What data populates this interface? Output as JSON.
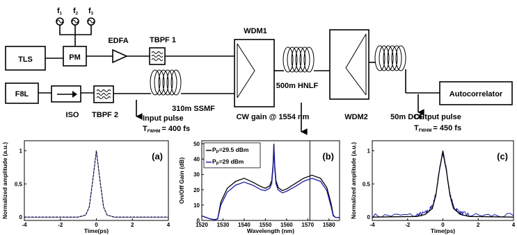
{
  "setup": {
    "freqs": [
      "f",
      "f",
      "f"
    ],
    "freq_subs": [
      "1",
      "2",
      "3"
    ],
    "tls": "TLS",
    "pm": "PM",
    "edfa": "EDFA",
    "tbpf1": "TBPF 1",
    "wdm1": "WDM1",
    "f8l": "F8L",
    "iso": "ISO",
    "tbpf2": "TBPF 2",
    "ssmf": "310m SSMF",
    "hnlf": "500m HNLF",
    "wdm2": "WDM2",
    "dcf": "50m DCF",
    "autocorrelator": "Autocorrelator",
    "input_pulse": "Input pulse",
    "input_fwhm_t": "T",
    "input_fwhm_sub": "FWHM",
    "input_fwhm_val": "= 400 fs",
    "cw_gain": "CW gain @ 1554 nm",
    "output_pulse": "Output pulse",
    "output_fwhm_t": "T",
    "output_fwhm_sub": "FWHM",
    "output_fwhm_val": "= 450 fs"
  },
  "chart_data": [
    {
      "type": "line",
      "panel_label": "(a)",
      "xlabel": "Time(ps)",
      "ylabel": "Normalized amplitude (a.u.)",
      "xlim": [
        -4,
        4
      ],
      "ylim": [
        -0.05,
        1.15
      ],
      "xticks": [
        "-4",
        "-2",
        "0",
        "2",
        "4"
      ],
      "yticks": [
        "0",
        "0.5",
        "1"
      ],
      "series": [
        {
          "color": "#1a1aa6",
          "style": "dashed",
          "x": [
            -4,
            -1,
            -0.6,
            -0.4,
            -0.2,
            0,
            0.2,
            0.4,
            0.6,
            1,
            4
          ],
          "y": [
            0,
            0,
            0.03,
            0.15,
            0.55,
            1.0,
            0.55,
            0.15,
            0.03,
            0,
            0
          ]
        }
      ],
      "color_line": "#1a1aa6"
    },
    {
      "type": "line",
      "panel_label": "(b)",
      "xlabel": "Wavelength (nm)",
      "ylabel": "On/Off Gain (dB)",
      "xlim": [
        1520,
        1585
      ],
      "ylim": [
        0,
        52
      ],
      "xticks": [
        "1520",
        "1530",
        "1540",
        "1550",
        "1560",
        "1570",
        "1580"
      ],
      "yticks": [
        "0",
        "10",
        "20",
        "30",
        "40",
        "50"
      ],
      "vline_x": 1571,
      "legend": "top-left",
      "series": [
        {
          "name_prefix": "P",
          "name_sub": "P",
          "name_val": "=29.5 dBm",
          "color": "#000000",
          "x": [
            1520,
            1522,
            1524,
            1526,
            1527.5,
            1529,
            1532,
            1536,
            1540,
            1544,
            1548,
            1550,
            1552,
            1553,
            1553.6,
            1554,
            1554.4,
            1555,
            1556,
            1558,
            1560,
            1564,
            1568,
            1572,
            1576,
            1579,
            1581,
            1582,
            1583,
            1585
          ],
          "y": [
            3,
            2,
            1,
            0.5,
            1,
            12,
            21,
            25.5,
            27.5,
            25,
            22,
            21,
            22.5,
            26,
            36,
            50,
            36,
            26,
            21.5,
            19.5,
            20.5,
            24,
            27.5,
            29.5,
            27.5,
            21.5,
            11,
            3.5,
            2,
            2
          ]
        },
        {
          "name_prefix": "P",
          "name_sub": "P",
          "name_val": "=29 dBm",
          "color": "#1a1aa6",
          "x": [
            1520,
            1522,
            1524,
            1526,
            1527.5,
            1529,
            1532,
            1536,
            1540,
            1544,
            1548,
            1550,
            1552,
            1553,
            1553.6,
            1554,
            1554.4,
            1555,
            1556,
            1558,
            1560,
            1564,
            1568,
            1572,
            1576,
            1579,
            1581,
            1582,
            1583,
            1585
          ],
          "y": [
            3,
            2,
            1,
            0.5,
            1,
            10,
            18.5,
            23,
            25,
            23,
            20,
            19.5,
            21,
            24,
            34,
            48,
            34,
            24,
            20,
            18,
            19,
            22,
            25.5,
            27.5,
            25.5,
            19.5,
            9,
            3,
            2,
            2
          ]
        }
      ]
    },
    {
      "type": "line",
      "panel_label": "(c)",
      "xlabel": "Time(ps)",
      "ylabel": "Normalized amplitude (a.u.)",
      "xlim": [
        -4,
        4
      ],
      "ylim": [
        -0.05,
        1.15
      ],
      "xticks": [
        "-4",
        "-2",
        "0",
        "2",
        "4"
      ],
      "yticks": [
        "0",
        "0.5",
        "1"
      ],
      "series": [
        {
          "color": "#1a1aa6",
          "noisy": true,
          "x": [
            -4,
            -1.5,
            -1,
            -0.6,
            -0.4,
            -0.2,
            0,
            0.2,
            0.4,
            0.6,
            1,
            1.5,
            4
          ],
          "y": [
            0.02,
            0.03,
            0.06,
            0.15,
            0.35,
            0.7,
            0.98,
            0.7,
            0.35,
            0.15,
            0.06,
            0.03,
            0.02
          ]
        },
        {
          "color": "#000000",
          "x": [
            -4,
            -1.5,
            -1,
            -0.6,
            -0.4,
            -0.2,
            0,
            0.2,
            0.4,
            0.6,
            1,
            1.5,
            4
          ],
          "y": [
            0,
            0.01,
            0.04,
            0.13,
            0.33,
            0.7,
            1.0,
            0.7,
            0.33,
            0.13,
            0.04,
            0.01,
            0
          ]
        }
      ]
    }
  ]
}
